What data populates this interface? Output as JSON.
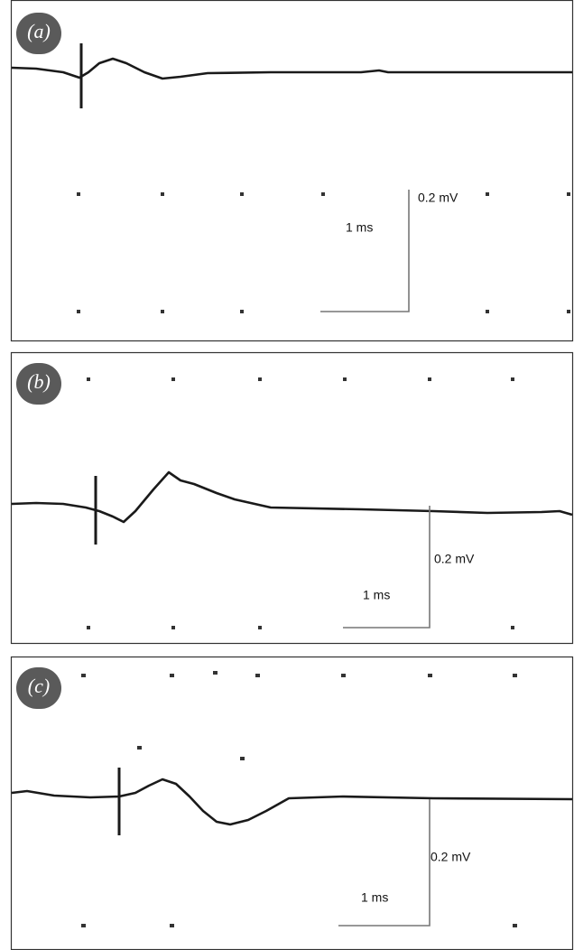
{
  "panels": [
    {
      "label": "(a)",
      "amplitude_scale": "0.2 mV",
      "time_scale": "1 ms"
    },
    {
      "label": "(b)",
      "amplitude_scale": "0.2 mV",
      "time_scale": "1 ms"
    },
    {
      "label": "(c)",
      "amplitude_scale": "0.2 mV",
      "time_scale": "1 ms"
    }
  ]
}
